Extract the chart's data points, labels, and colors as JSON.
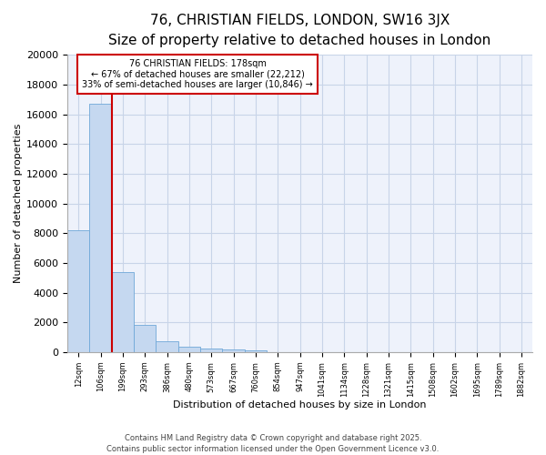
{
  "title_line1": "76, CHRISTIAN FIELDS, LONDON, SW16 3JX",
  "title_line2": "Size of property relative to detached houses in London",
  "xlabel": "Distribution of detached houses by size in London",
  "ylabel": "Number of detached properties",
  "categories": [
    "12sqm",
    "106sqm",
    "199sqm",
    "293sqm",
    "386sqm",
    "480sqm",
    "573sqm",
    "667sqm",
    "760sqm",
    "854sqm",
    "947sqm",
    "1041sqm",
    "1134sqm",
    "1228sqm",
    "1321sqm",
    "1415sqm",
    "1508sqm",
    "1602sqm",
    "1695sqm",
    "1789sqm",
    "1882sqm"
  ],
  "values": [
    8200,
    16700,
    5400,
    1850,
    730,
    360,
    270,
    200,
    130,
    0,
    0,
    0,
    0,
    0,
    0,
    0,
    0,
    0,
    0,
    0,
    0
  ],
  "bar_color": "#c5d8f0",
  "bar_edge_color": "#6fa8d8",
  "red_line_x": 1.5,
  "annotation_line1": "76 CHRISTIAN FIELDS: 178sqm",
  "annotation_line2": "← 67% of detached houses are smaller (22,212)",
  "annotation_line3": "33% of semi-detached houses are larger (10,846) →",
  "ylim": [
    0,
    20000
  ],
  "yticks": [
    0,
    2000,
    4000,
    6000,
    8000,
    10000,
    12000,
    14000,
    16000,
    18000,
    20000
  ],
  "footer_line1": "Contains HM Land Registry data © Crown copyright and database right 2025.",
  "footer_line2": "Contains public sector information licensed under the Open Government Licence v3.0.",
  "bg_color": "#ffffff",
  "plot_bg_color": "#eef2fb",
  "grid_color": "#c8d4e8",
  "annotation_box_edge_color": "#cc0000",
  "red_line_color": "#cc0000",
  "title1_fontsize": 11,
  "title2_fontsize": 9,
  "ylabel_fontsize": 8,
  "xlabel_fontsize": 8,
  "ytick_fontsize": 8,
  "xtick_fontsize": 6,
  "annotation_fontsize": 7,
  "footer_fontsize": 6
}
